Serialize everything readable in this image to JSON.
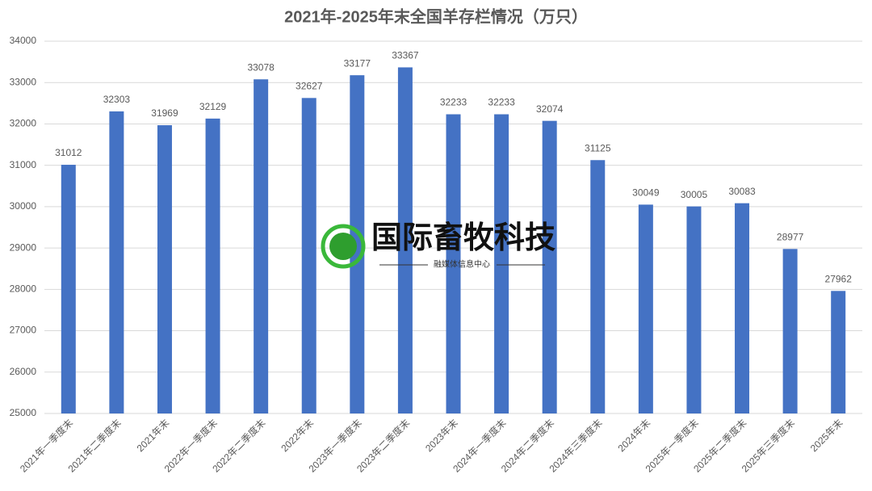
{
  "chart_data": {
    "type": "bar",
    "title": "2021年-2025年末全国羊存栏情况（万只）",
    "categories": [
      "2021年一季度末",
      "2021年二季度末",
      "2021年末",
      "2022年一季度末",
      "2022年二季度末",
      "2022年末",
      "2023年一季度末",
      "2023年二季度末",
      "2023年末",
      "2024年一季度末",
      "2024年二季度末",
      "2024年三季度末",
      "2024年末",
      "2025年一季度末",
      "2025年二季度末",
      "2025年三季度末",
      "2025年末"
    ],
    "values": [
      31012,
      32303,
      31969,
      32129,
      33078,
      32627,
      33177,
      33367,
      32233,
      32233,
      32074,
      31125,
      30049,
      30005,
      30083,
      28977,
      27962
    ],
    "color": "#4472c4",
    "ylim": [
      25000,
      34000
    ],
    "yticks": [
      25000,
      26000,
      27000,
      28000,
      29000,
      30000,
      31000,
      32000,
      33000,
      34000
    ],
    "grid": true
  },
  "watermark": {
    "title": "国际畜牧科技",
    "subtitle": "融媒体信息中心"
  }
}
